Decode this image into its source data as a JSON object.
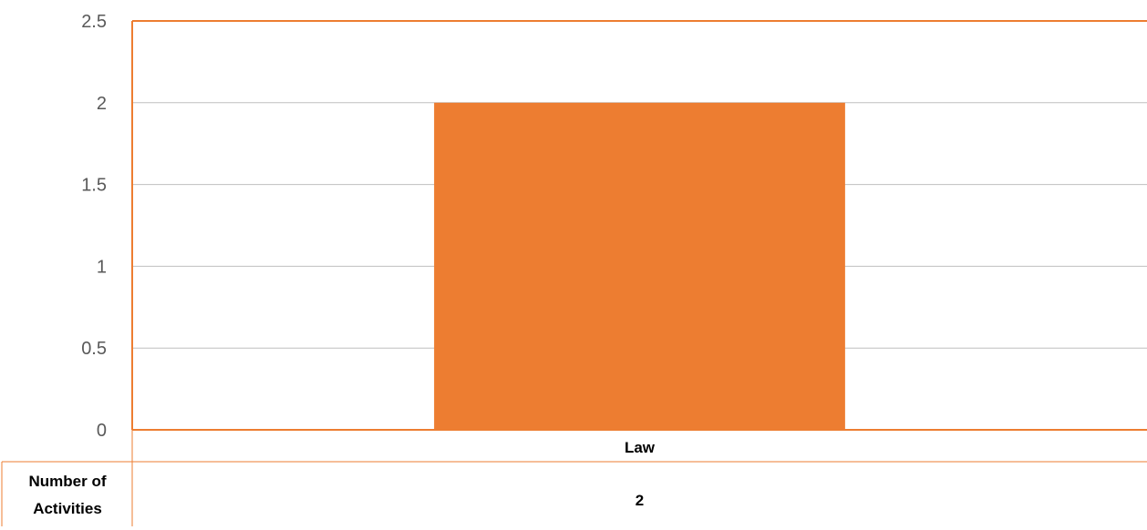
{
  "chart_data": {
    "type": "bar",
    "title": "",
    "xlabel": "",
    "ylabel": "",
    "categories": [
      "Law"
    ],
    "series": [
      {
        "name": "Number of Activities",
        "values": [
          2
        ],
        "color": "#ED7D31"
      }
    ],
    "ylim": [
      0,
      2.5
    ],
    "yticks": [
      0,
      0.5,
      1,
      1.5,
      2,
      2.5
    ],
    "grid": true,
    "data_table": true,
    "axis_color": "#ED7D31",
    "grid_color": "#BFBFBF"
  }
}
